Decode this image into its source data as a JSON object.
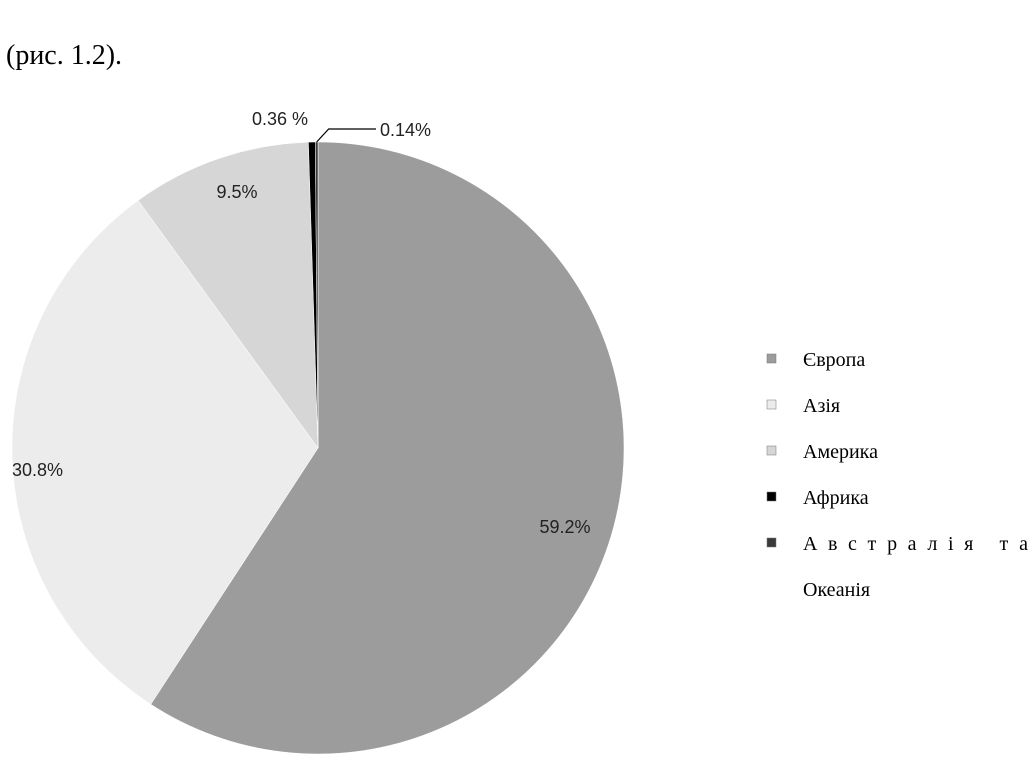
{
  "caption": "(рис. 1.2).",
  "chart_data": {
    "type": "pie",
    "categories": [
      "Європа",
      "Азія",
      "Америка",
      "Африка",
      "Австралія та Океанія"
    ],
    "values": [
      59.2,
      30.8,
      9.5,
      0.36,
      0.14
    ],
    "value_labels": [
      "59.2%",
      "30.8%",
      "9.5%",
      "0.36 %",
      "0.14%"
    ],
    "colors": [
      "#9c9c9c",
      "#ececec",
      "#d6d6d6",
      "#000000",
      "#3a3a3a"
    ],
    "legend": "right"
  }
}
